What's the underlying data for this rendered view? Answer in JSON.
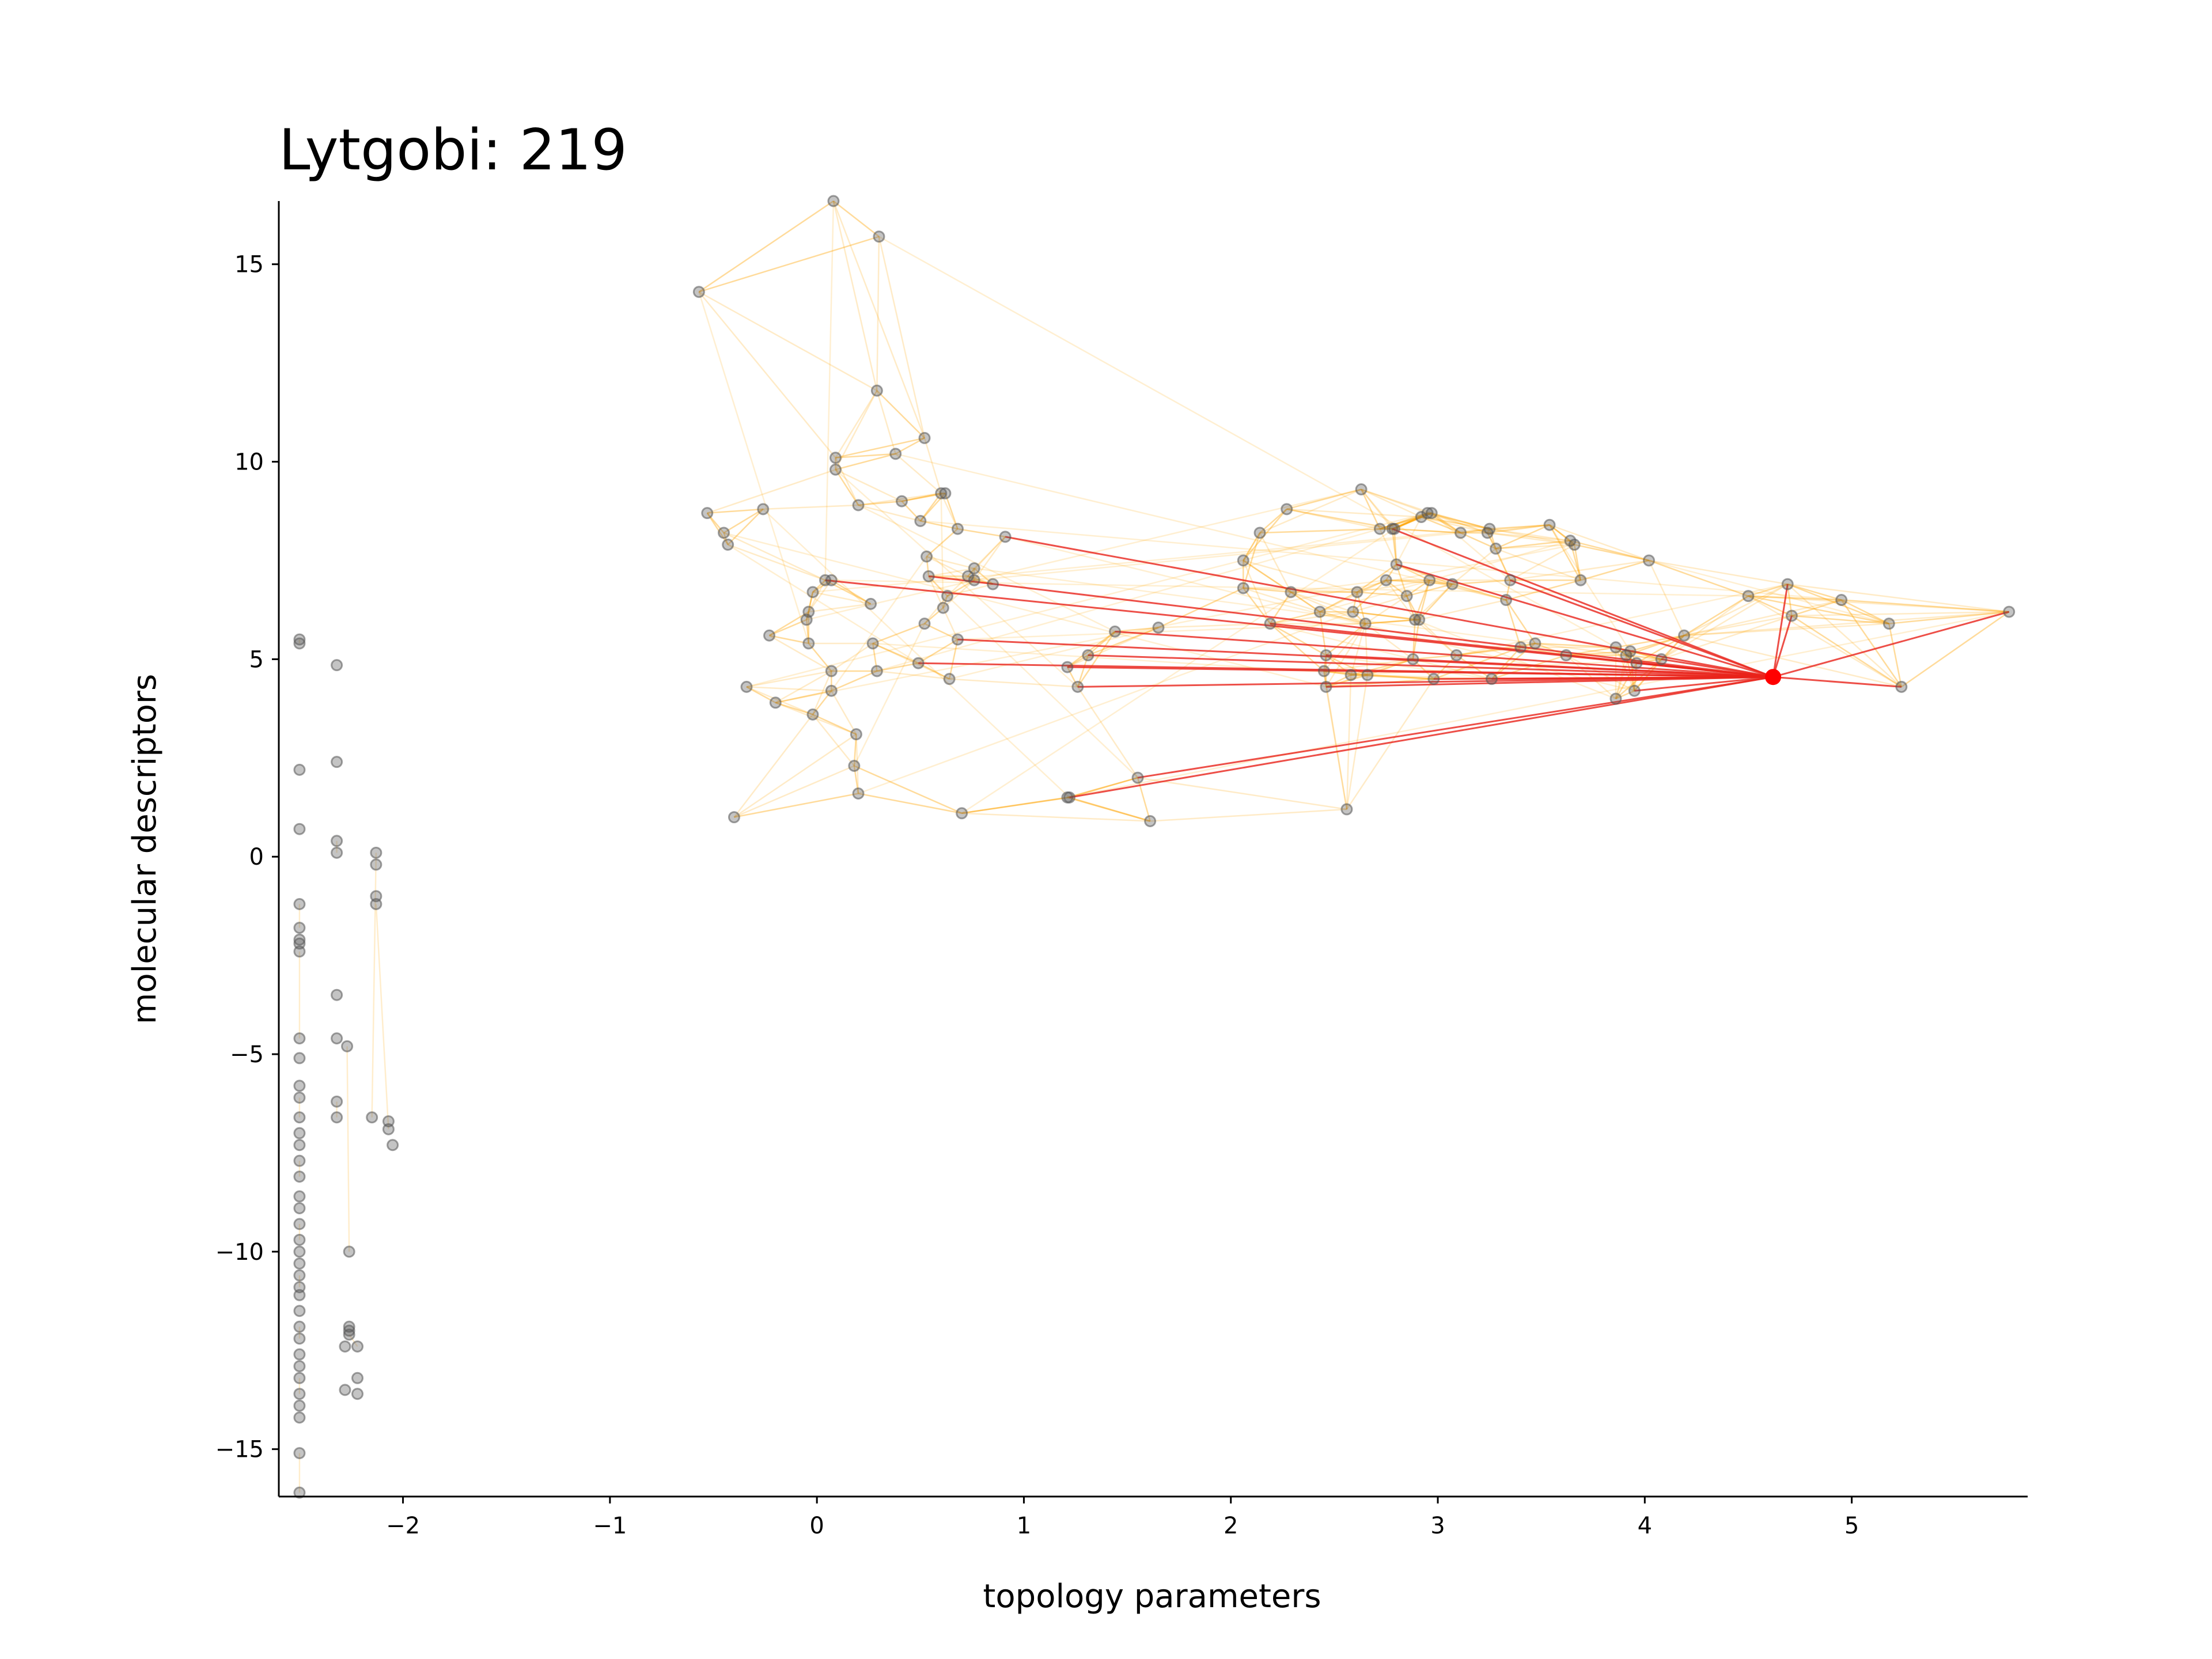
{
  "chart_data": {
    "type": "scatter",
    "title": "Lytgobi: 219",
    "xlabel": "topology parameters",
    "ylabel": "molecular descriptors",
    "xlim": [
      -2.6,
      5.85
    ],
    "ylim": [
      -16.2,
      16.6
    ],
    "xticks": [
      -2,
      -1,
      0,
      1,
      2,
      3,
      4,
      5
    ],
    "yticks": [
      -15,
      -10,
      -5,
      0,
      5,
      10,
      15
    ],
    "xtick_labels": [
      "−2",
      "−1",
      "0",
      "1",
      "2",
      "3",
      "4",
      "5"
    ],
    "ytick_labels": [
      "−15",
      "−10",
      "−5",
      "0",
      "5",
      "10",
      "15"
    ],
    "grid": false,
    "colors": {
      "points": "#555555",
      "weak_edges": "#ffa500",
      "highlight_edges": "#e8231a",
      "highlight_point": "#ff0000",
      "axes": "#000000"
    },
    "highlight_point": [
      4.62,
      4.55
    ],
    "points": [
      [
        -2.5,
        5.5
      ],
      [
        -2.5,
        5.4
      ],
      [
        -2.5,
        2.2
      ],
      [
        -2.5,
        0.7
      ],
      [
        -2.5,
        -1.2
      ],
      [
        -2.5,
        -1.8
      ],
      [
        -2.5,
        -2.1
      ],
      [
        -2.5,
        -2.2
      ],
      [
        -2.5,
        -2.4
      ],
      [
        -2.5,
        -4.6
      ],
      [
        -2.5,
        -5.1
      ],
      [
        -2.5,
        -5.8
      ],
      [
        -2.5,
        -6.1
      ],
      [
        -2.5,
        -6.6
      ],
      [
        -2.5,
        -7.0
      ],
      [
        -2.5,
        -7.3
      ],
      [
        -2.5,
        -7.7
      ],
      [
        -2.5,
        -8.1
      ],
      [
        -2.5,
        -8.6
      ],
      [
        -2.5,
        -8.9
      ],
      [
        -2.5,
        -9.3
      ],
      [
        -2.5,
        -9.7
      ],
      [
        -2.5,
        -10.0
      ],
      [
        -2.5,
        -10.3
      ],
      [
        -2.5,
        -10.6
      ],
      [
        -2.5,
        -10.9
      ],
      [
        -2.5,
        -11.1
      ],
      [
        -2.5,
        -11.5
      ],
      [
        -2.5,
        -11.9
      ],
      [
        -2.5,
        -12.2
      ],
      [
        -2.5,
        -12.6
      ],
      [
        -2.5,
        -12.9
      ],
      [
        -2.5,
        -13.2
      ],
      [
        -2.5,
        -13.6
      ],
      [
        -2.5,
        -13.9
      ],
      [
        -2.5,
        -14.2
      ],
      [
        -2.5,
        -15.1
      ],
      [
        -2.5,
        -16.1
      ],
      [
        -2.32,
        4.85
      ],
      [
        -2.32,
        2.4
      ],
      [
        -2.32,
        0.4
      ],
      [
        -2.32,
        0.1
      ],
      [
        -2.32,
        -3.5
      ],
      [
        -2.32,
        -4.6
      ],
      [
        -2.32,
        -6.2
      ],
      [
        -2.32,
        -6.6
      ],
      [
        -2.28,
        -12.4
      ],
      [
        -2.28,
        -13.5
      ],
      [
        -2.27,
        -4.8
      ],
      [
        -2.26,
        -10.0
      ],
      [
        -2.26,
        -11.9
      ],
      [
        -2.26,
        -12.0
      ],
      [
        -2.26,
        -12.1
      ],
      [
        -2.22,
        -12.4
      ],
      [
        -2.22,
        -13.2
      ],
      [
        -2.22,
        -13.6
      ],
      [
        -2.15,
        -6.6
      ],
      [
        -2.13,
        0.1
      ],
      [
        -2.13,
        -0.2
      ],
      [
        -2.13,
        -1.0
      ],
      [
        -2.13,
        -1.2
      ],
      [
        -2.07,
        -6.9
      ],
      [
        -2.07,
        -6.7
      ],
      [
        -2.05,
        -7.3
      ],
      [
        -0.57,
        14.3
      ],
      [
        -0.53,
        8.7
      ],
      [
        -0.45,
        8.2
      ],
      [
        -0.43,
        7.9
      ],
      [
        -0.4,
        1.0
      ],
      [
        -0.34,
        4.3
      ],
      [
        -0.26,
        8.8
      ],
      [
        -0.23,
        5.6
      ],
      [
        -0.2,
        3.9
      ],
      [
        -0.05,
        6.0
      ],
      [
        -0.04,
        6.2
      ],
      [
        -0.04,
        5.4
      ],
      [
        -0.02,
        6.7
      ],
      [
        -0.02,
        3.6
      ],
      [
        0.04,
        7.0
      ],
      [
        0.07,
        7.0
      ],
      [
        0.07,
        4.7
      ],
      [
        0.07,
        4.2
      ],
      [
        0.08,
        16.6
      ],
      [
        0.09,
        10.1
      ],
      [
        0.09,
        9.8
      ],
      [
        0.18,
        2.3
      ],
      [
        0.19,
        3.1
      ],
      [
        0.2,
        1.6
      ],
      [
        0.2,
        8.9
      ],
      [
        0.26,
        6.4
      ],
      [
        0.27,
        5.4
      ],
      [
        0.29,
        4.7
      ],
      [
        0.29,
        11.8
      ],
      [
        0.3,
        15.7
      ],
      [
        0.38,
        10.2
      ],
      [
        0.41,
        9.0
      ],
      [
        0.49,
        4.9
      ],
      [
        0.5,
        8.5
      ],
      [
        0.52,
        10.6
      ],
      [
        0.52,
        5.9
      ],
      [
        0.53,
        7.6
      ],
      [
        0.54,
        7.1
      ],
      [
        0.6,
        9.2
      ],
      [
        0.61,
        6.3
      ],
      [
        0.62,
        9.2
      ],
      [
        0.63,
        6.6
      ],
      [
        0.64,
        4.5
      ],
      [
        0.68,
        8.3
      ],
      [
        0.68,
        5.5
      ],
      [
        0.7,
        1.1
      ],
      [
        0.73,
        7.1
      ],
      [
        0.76,
        7.0
      ],
      [
        0.76,
        7.3
      ],
      [
        0.85,
        6.9
      ],
      [
        0.91,
        8.1
      ],
      [
        1.21,
        1.5
      ],
      [
        1.21,
        4.8
      ],
      [
        1.22,
        1.5
      ],
      [
        1.26,
        4.3
      ],
      [
        1.31,
        5.1
      ],
      [
        1.44,
        5.7
      ],
      [
        1.55,
        2.0
      ],
      [
        1.61,
        0.9
      ],
      [
        1.65,
        5.8
      ],
      [
        2.06,
        7.5
      ],
      [
        2.06,
        6.8
      ],
      [
        2.14,
        8.2
      ],
      [
        2.19,
        5.9
      ],
      [
        2.27,
        8.8
      ],
      [
        2.29,
        6.7
      ],
      [
        2.43,
        6.2
      ],
      [
        2.45,
        4.7
      ],
      [
        2.46,
        5.1
      ],
      [
        2.46,
        4.3
      ],
      [
        2.56,
        1.2
      ],
      [
        2.58,
        4.6
      ],
      [
        2.59,
        6.2
      ],
      [
        2.61,
        6.7
      ],
      [
        2.63,
        9.3
      ],
      [
        2.65,
        5.9
      ],
      [
        2.66,
        4.6
      ],
      [
        2.72,
        8.3
      ],
      [
        2.75,
        7.0
      ],
      [
        2.78,
        8.3
      ],
      [
        2.79,
        8.3
      ],
      [
        2.8,
        7.4
      ],
      [
        2.85,
        6.6
      ],
      [
        2.88,
        5.0
      ],
      [
        2.89,
        6.0
      ],
      [
        2.91,
        6.0
      ],
      [
        2.92,
        8.6
      ],
      [
        2.95,
        8.7
      ],
      [
        2.96,
        7.0
      ],
      [
        2.97,
        8.7
      ],
      [
        2.98,
        4.5
      ],
      [
        3.07,
        6.9
      ],
      [
        3.09,
        5.1
      ],
      [
        3.11,
        8.2
      ],
      [
        3.24,
        8.2
      ],
      [
        3.25,
        8.3
      ],
      [
        3.26,
        4.5
      ],
      [
        3.28,
        7.8
      ],
      [
        3.33,
        6.5
      ],
      [
        3.35,
        7.0
      ],
      [
        3.4,
        5.3
      ],
      [
        3.47,
        5.4
      ],
      [
        3.54,
        8.4
      ],
      [
        3.62,
        5.1
      ],
      [
        3.64,
        8.0
      ],
      [
        3.66,
        7.9
      ],
      [
        3.69,
        7.0
      ],
      [
        3.86,
        4.0
      ],
      [
        3.86,
        5.3
      ],
      [
        3.91,
        5.1
      ],
      [
        3.93,
        5.2
      ],
      [
        3.95,
        4.2
      ],
      [
        3.96,
        4.9
      ],
      [
        4.02,
        7.5
      ],
      [
        4.08,
        5.0
      ],
      [
        4.19,
        5.6
      ],
      [
        4.5,
        6.6
      ],
      [
        4.69,
        6.9
      ],
      [
        4.71,
        6.1
      ],
      [
        4.95,
        6.5
      ],
      [
        5.18,
        5.9
      ],
      [
        5.24,
        4.3
      ],
      [
        5.76,
        6.2
      ]
    ],
    "highlight_edges": [
      [
        [
          4.62,
          4.55
        ],
        [
          2.78,
          8.3
        ]
      ],
      [
        [
          4.62,
          4.55
        ],
        [
          0.91,
          8.1
        ]
      ],
      [
        [
          4.62,
          4.55
        ],
        [
          0.04,
          7.0
        ]
      ],
      [
        [
          4.62,
          4.55
        ],
        [
          0.54,
          7.1
        ]
      ],
      [
        [
          4.62,
          4.55
        ],
        [
          0.68,
          5.5
        ]
      ],
      [
        [
          4.62,
          4.55
        ],
        [
          0.49,
          4.9
        ]
      ],
      [
        [
          4.62,
          4.55
        ],
        [
          1.21,
          4.8
        ]
      ],
      [
        [
          4.62,
          4.55
        ],
        [
          1.26,
          4.3
        ]
      ],
      [
        [
          4.62,
          4.55
        ],
        [
          1.31,
          5.1
        ]
      ],
      [
        [
          4.62,
          4.55
        ],
        [
          1.44,
          5.7
        ]
      ],
      [
        [
          4.62,
          4.55
        ],
        [
          1.22,
          1.5
        ]
      ],
      [
        [
          4.62,
          4.55
        ],
        [
          1.55,
          2.0
        ]
      ],
      [
        [
          4.62,
          4.55
        ],
        [
          2.8,
          7.4
        ]
      ],
      [
        [
          4.62,
          4.55
        ],
        [
          3.26,
          4.5
        ]
      ],
      [
        [
          4.62,
          4.55
        ],
        [
          2.98,
          4.5
        ]
      ],
      [
        [
          4.62,
          4.55
        ],
        [
          2.46,
          4.3
        ]
      ],
      [
        [
          4.62,
          4.55
        ],
        [
          3.35,
          7.0
        ]
      ],
      [
        [
          4.62,
          4.55
        ],
        [
          2.19,
          5.9
        ]
      ],
      [
        [
          4.62,
          4.55
        ],
        [
          2.46,
          5.1
        ]
      ],
      [
        [
          4.62,
          4.55
        ],
        [
          3.96,
          4.9
        ]
      ],
      [
        [
          4.62,
          4.55
        ],
        [
          4.71,
          6.1
        ]
      ],
      [
        [
          4.62,
          4.55
        ],
        [
          4.69,
          6.9
        ]
      ],
      [
        [
          4.62,
          4.55
        ],
        [
          5.24,
          4.3
        ]
      ],
      [
        [
          4.62,
          4.55
        ],
        [
          5.76,
          6.2
        ]
      ],
      [
        [
          4.62,
          4.55
        ],
        [
          3.95,
          4.2
        ]
      ],
      [
        [
          4.62,
          4.55
        ],
        [
          4.08,
          5.0
        ]
      ]
    ]
  }
}
